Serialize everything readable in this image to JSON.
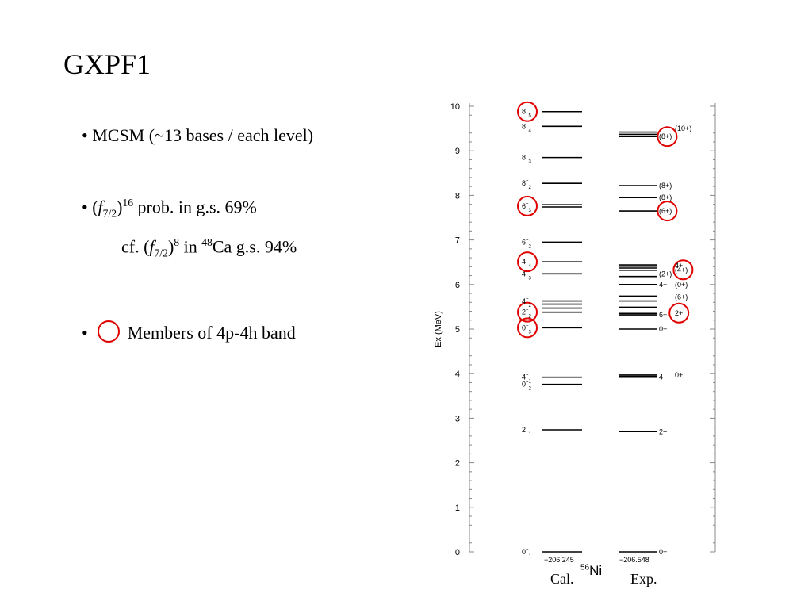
{
  "title": "GXPF1",
  "bullets": {
    "b1": "• MCSM (~13 bases / each level)",
    "b2_prefix": "• (",
    "b2_f": "f",
    "b2_sub": "7/2",
    "b2_sup": "16",
    "b2_rest": " prob. in g.s.   69%",
    "b3_prefix": "cf.  (",
    "b3_f": "f",
    "b3_sub": "7/2",
    "b3_sup": "8",
    "b3_mid": " in ",
    "b3_mass": "48",
    "b3_rest": "Ca g.s.  94%",
    "b4_dot": "•",
    "b4_text": "Members of  4p-4h band"
  },
  "footer": {
    "cal": "Cal.",
    "exp": "Exp.",
    "nucleus_mass": "56",
    "nucleus_symbol": "Ni"
  },
  "colors": {
    "highlight": "#e00000",
    "line": "#000000"
  },
  "chart_data": {
    "type": "level-scheme",
    "ylabel": "Ex  (MeV)",
    "ylim": [
      0,
      10
    ],
    "yticks": [
      0,
      1,
      2,
      3,
      4,
      5,
      6,
      7,
      8,
      9,
      10
    ],
    "columns": [
      {
        "name": "Cal.",
        "binding_label": "−206.245"
      },
      {
        "name": "Exp.",
        "binding_label": "−206.548"
      }
    ],
    "cal_levels": [
      0,
      2.74,
      3.76,
      3.92,
      5.03,
      5.38,
      5.47,
      5.56,
      5.63,
      6.24,
      6.51,
      6.95,
      7.74,
      7.79,
      8.27,
      8.85,
      9.55,
      9.88
    ],
    "cal_labels": [
      {
        "e": 0,
        "j": "0",
        "n": "1"
      },
      {
        "e": 2.74,
        "j": "2",
        "n": "1"
      },
      {
        "e": 3.76,
        "j": "0",
        "n": "2"
      },
      {
        "e": 3.92,
        "j": "4",
        "n": "1"
      },
      {
        "e": 5.03,
        "j": "0",
        "n": "3",
        "circled": true
      },
      {
        "e": 5.38,
        "j": "2",
        "n": "2",
        "circled": true
      },
      {
        "e": 5.62,
        "j": "4",
        "n": "2"
      },
      {
        "e": 6.24,
        "j": "4",
        "n": "3"
      },
      {
        "e": 6.51,
        "j": "4",
        "n": "4",
        "circled": true
      },
      {
        "e": 6.95,
        "j": "6",
        "n": "2"
      },
      {
        "e": 7.76,
        "j": "6",
        "n": "3",
        "circled": true
      },
      {
        "e": 8.27,
        "j": "8",
        "n": "2"
      },
      {
        "e": 8.85,
        "j": "8",
        "n": "3"
      },
      {
        "e": 9.55,
        "j": "8",
        "n": "4"
      },
      {
        "e": 9.88,
        "j": "8",
        "n": "5",
        "circled": true
      }
    ],
    "exp_levels": [
      0,
      2.7,
      3.92,
      3.94,
      3.97,
      5.0,
      5.32,
      5.35,
      5.49,
      5.63,
      5.74,
      6.0,
      6.18,
      6.32,
      6.37,
      6.41,
      6.44,
      7.65,
      7.95,
      8.22,
      9.32,
      9.37,
      9.42
    ],
    "exp_labels": [
      {
        "e": 0,
        "text": "0+"
      },
      {
        "e": 2.7,
        "text": "2+"
      },
      {
        "e": 3.92,
        "text": "4+"
      },
      {
        "e": 3.97,
        "text": "0+",
        "col": 2
      },
      {
        "e": 5.0,
        "text": "0+"
      },
      {
        "e": 5.32,
        "text": "6+"
      },
      {
        "e": 5.36,
        "text": "2+",
        "col": 2,
        "circled": true
      },
      {
        "e": 5.72,
        "text": "(6+)",
        "col": 2
      },
      {
        "e": 6.0,
        "text": "4+"
      },
      {
        "e": 6.0,
        "text": "(0+)",
        "col": 2
      },
      {
        "e": 6.24,
        "text": "(2+)"
      },
      {
        "e": 6.33,
        "text": "(4+)",
        "col": 2,
        "circled": true
      },
      {
        "e": 6.42,
        "text": "4+",
        "col": 2
      },
      {
        "e": 7.65,
        "text": "(6+)",
        "circled": true
      },
      {
        "e": 7.95,
        "text": "(8+)"
      },
      {
        "e": 8.22,
        "text": "(8+)"
      },
      {
        "e": 9.32,
        "text": "(8+)",
        "circled": true
      },
      {
        "e": 9.5,
        "text": "(10+)",
        "col": 2
      }
    ]
  }
}
